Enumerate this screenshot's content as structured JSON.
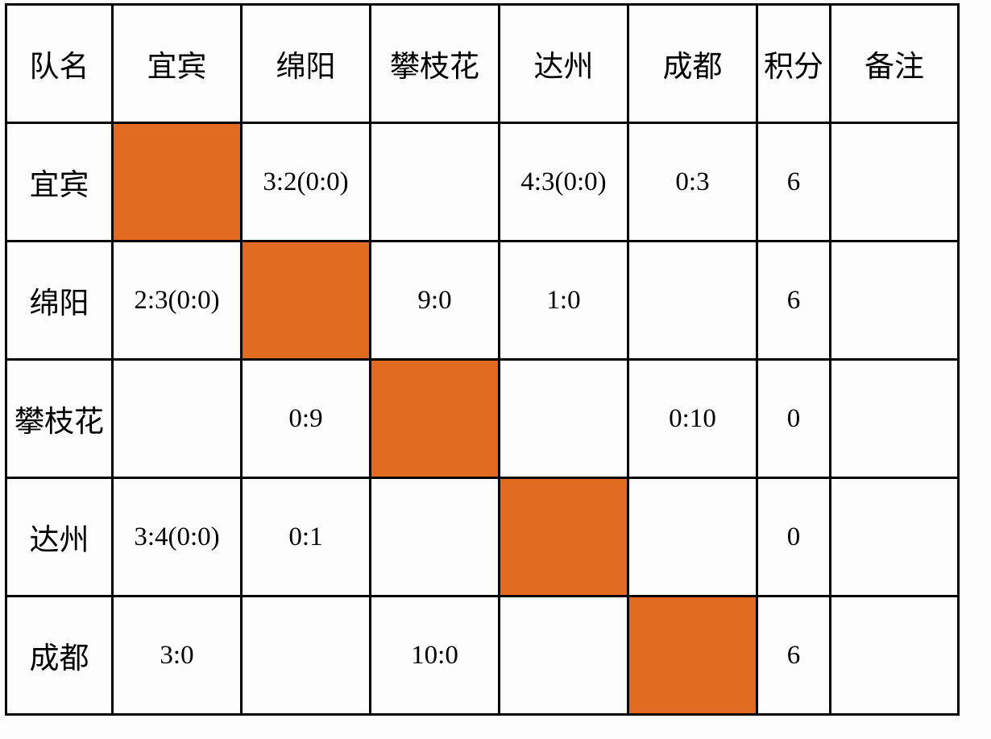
{
  "colors": {
    "diagonal_fill": "#e26b22",
    "border": "#000000"
  },
  "table": {
    "headers": [
      "队名",
      "宜宾",
      "绵阳",
      "攀枝花",
      "达州",
      "成都",
      "积分",
      "备注"
    ],
    "rows": [
      {
        "team": "宜宾",
        "cells": [
          "",
          "3:2(0:0)",
          "",
          "4:3(0:0)",
          "0:3"
        ],
        "points": "6",
        "note": ""
      },
      {
        "team": "绵阳",
        "cells": [
          "2:3(0:0)",
          "",
          "9:0",
          "1:0",
          ""
        ],
        "points": "6",
        "note": ""
      },
      {
        "team": "攀枝花",
        "cells": [
          "",
          "0:9",
          "",
          "",
          "0:10"
        ],
        "points": "0",
        "note": ""
      },
      {
        "team": "达州",
        "cells": [
          "3:4(0:0)",
          "0:1",
          "",
          "",
          ""
        ],
        "points": "0",
        "note": ""
      },
      {
        "team": "成都",
        "cells": [
          "3:0",
          "",
          "10:0",
          "",
          ""
        ],
        "points": "6",
        "note": ""
      }
    ]
  }
}
